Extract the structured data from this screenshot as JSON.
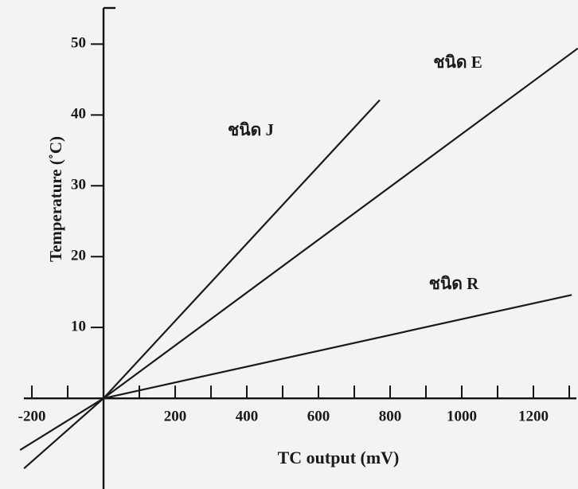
{
  "chart_data": {
    "type": "line",
    "xlabel": "TC output (mV)",
    "ylabel": "Temperature (˚C)",
    "xlim": [
      -229,
      1320
    ],
    "ylim": [
      -12.8,
      56
    ],
    "xticks": [
      -200,
      200,
      400,
      600,
      800,
      1000,
      1200
    ],
    "xminorticks": [
      -100,
      100,
      300,
      500,
      700,
      900,
      1100,
      1300
    ],
    "yticks": [
      10,
      20,
      30,
      40,
      50
    ],
    "series": [
      {
        "name": "ชนิด J",
        "color": "#1a1a1a",
        "x": [
          -222,
          0,
          771
        ],
        "values": [
          -9.9,
          0,
          42.1
        ]
      },
      {
        "name": "ชนิด E",
        "color": "#1a1a1a",
        "x": [
          -233,
          0,
          1324
        ],
        "values": [
          -7.3,
          0,
          49.4
        ]
      },
      {
        "name": "ชนิด R",
        "color": "#1a1a1a",
        "x": [
          0,
          1307
        ],
        "values": [
          0,
          14.6
        ]
      }
    ]
  }
}
